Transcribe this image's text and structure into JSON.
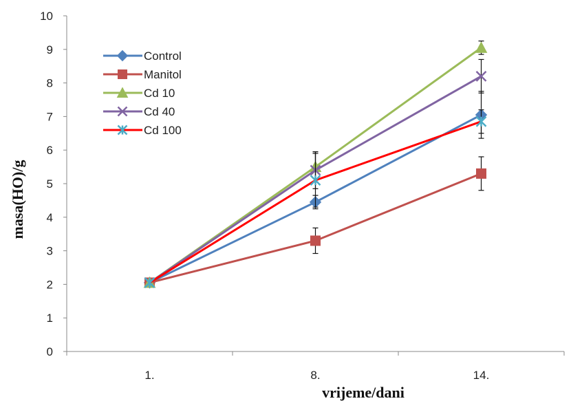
{
  "chart_data": {
    "type": "line",
    "categories": [
      "1.",
      "8.",
      "14."
    ],
    "x_positions": [
      1,
      8,
      14
    ],
    "xlabel": "vrijeme/dani",
    "ylabel": "masa(HO)/g",
    "ylim": [
      0,
      10
    ],
    "yticks": [
      "0",
      "1",
      "2",
      "3",
      "4",
      "5",
      "6",
      "7",
      "8",
      "9",
      "10"
    ],
    "grid": false,
    "legend_position": "top-left",
    "series": [
      {
        "name": "Control",
        "values": [
          2.05,
          4.45,
          7.05
        ],
        "errors": [
          0,
          0.2,
          0.7
        ],
        "color": "#4F81BD",
        "marker": "diamond"
      },
      {
        "name": "Manitol",
        "values": [
          2.05,
          3.3,
          5.3
        ],
        "errors": [
          0,
          0.38,
          0.5
        ],
        "color": "#C0504D",
        "marker": "square"
      },
      {
        "name": "Cd 10",
        "values": [
          2.05,
          5.5,
          9.05
        ],
        "errors": [
          0,
          0.45,
          0.2
        ],
        "color": "#9BBB59",
        "marker": "triangle"
      },
      {
        "name": "Cd 40",
        "values": [
          2.05,
          5.4,
          8.2
        ],
        "errors": [
          0,
          0.55,
          0.5
        ],
        "color": "#8064A2",
        "marker": "x"
      },
      {
        "name": "Cd 100",
        "values": [
          2.05,
          5.1,
          6.85
        ],
        "errors": [
          0,
          0.8,
          0.35
        ],
        "color": "#FF0000",
        "marker": "star"
      }
    ]
  }
}
